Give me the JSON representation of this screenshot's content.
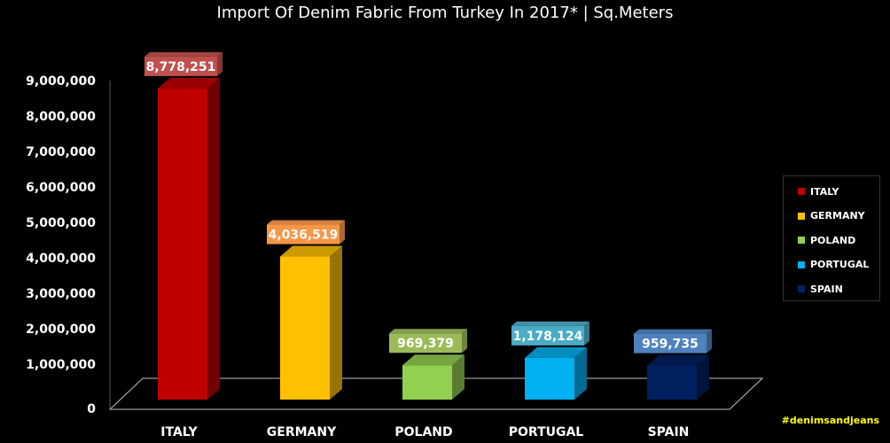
{
  "title": "Import Of Denim Fabric From Turkey In 2017* | Sq.Meters",
  "hashtag": "#denimsandjeans",
  "colors": {
    "background": "#000000",
    "axis_text": "#ffffff",
    "hashtag": "#ffff00"
  },
  "chart_data": {
    "type": "bar",
    "title": "Import Of Denim Fabric From Turkey In 2017* | Sq.Meters",
    "xlabel": "",
    "ylabel": "",
    "categories": [
      "ITALY",
      "GERMANY",
      "POLAND",
      "PORTUGAL",
      "SPAIN"
    ],
    "values": [
      8778251,
      4036519,
      969379,
      1178124,
      959735
    ],
    "value_labels": [
      "8,778,251",
      "4,036,519",
      "969,379",
      "1,178,124",
      "959,735"
    ],
    "ylim": [
      0,
      9000000
    ],
    "yticks": [
      0,
      1000000,
      2000000,
      3000000,
      4000000,
      5000000,
      6000000,
      7000000,
      8000000,
      9000000
    ],
    "ytick_labels": [
      "0",
      "1,000,000",
      "2,000,000",
      "3,000,000",
      "4,000,000",
      "5,000,000",
      "6,000,000",
      "7,000,000",
      "8,000,000",
      "9,000,000"
    ],
    "colors": [
      "#c00000",
      "#ffc000",
      "#92d050",
      "#00b0f0",
      "#002060"
    ],
    "label_colors": [
      "#c0504d",
      "#f79646",
      "#9bbb59",
      "#4bacc6",
      "#4f81bd"
    ],
    "grid": false,
    "legend": {
      "position": "right",
      "entries": [
        "ITALY",
        "GERMANY",
        "POLAND",
        "PORTUGAL",
        "SPAIN"
      ]
    },
    "style": "3d-column"
  }
}
